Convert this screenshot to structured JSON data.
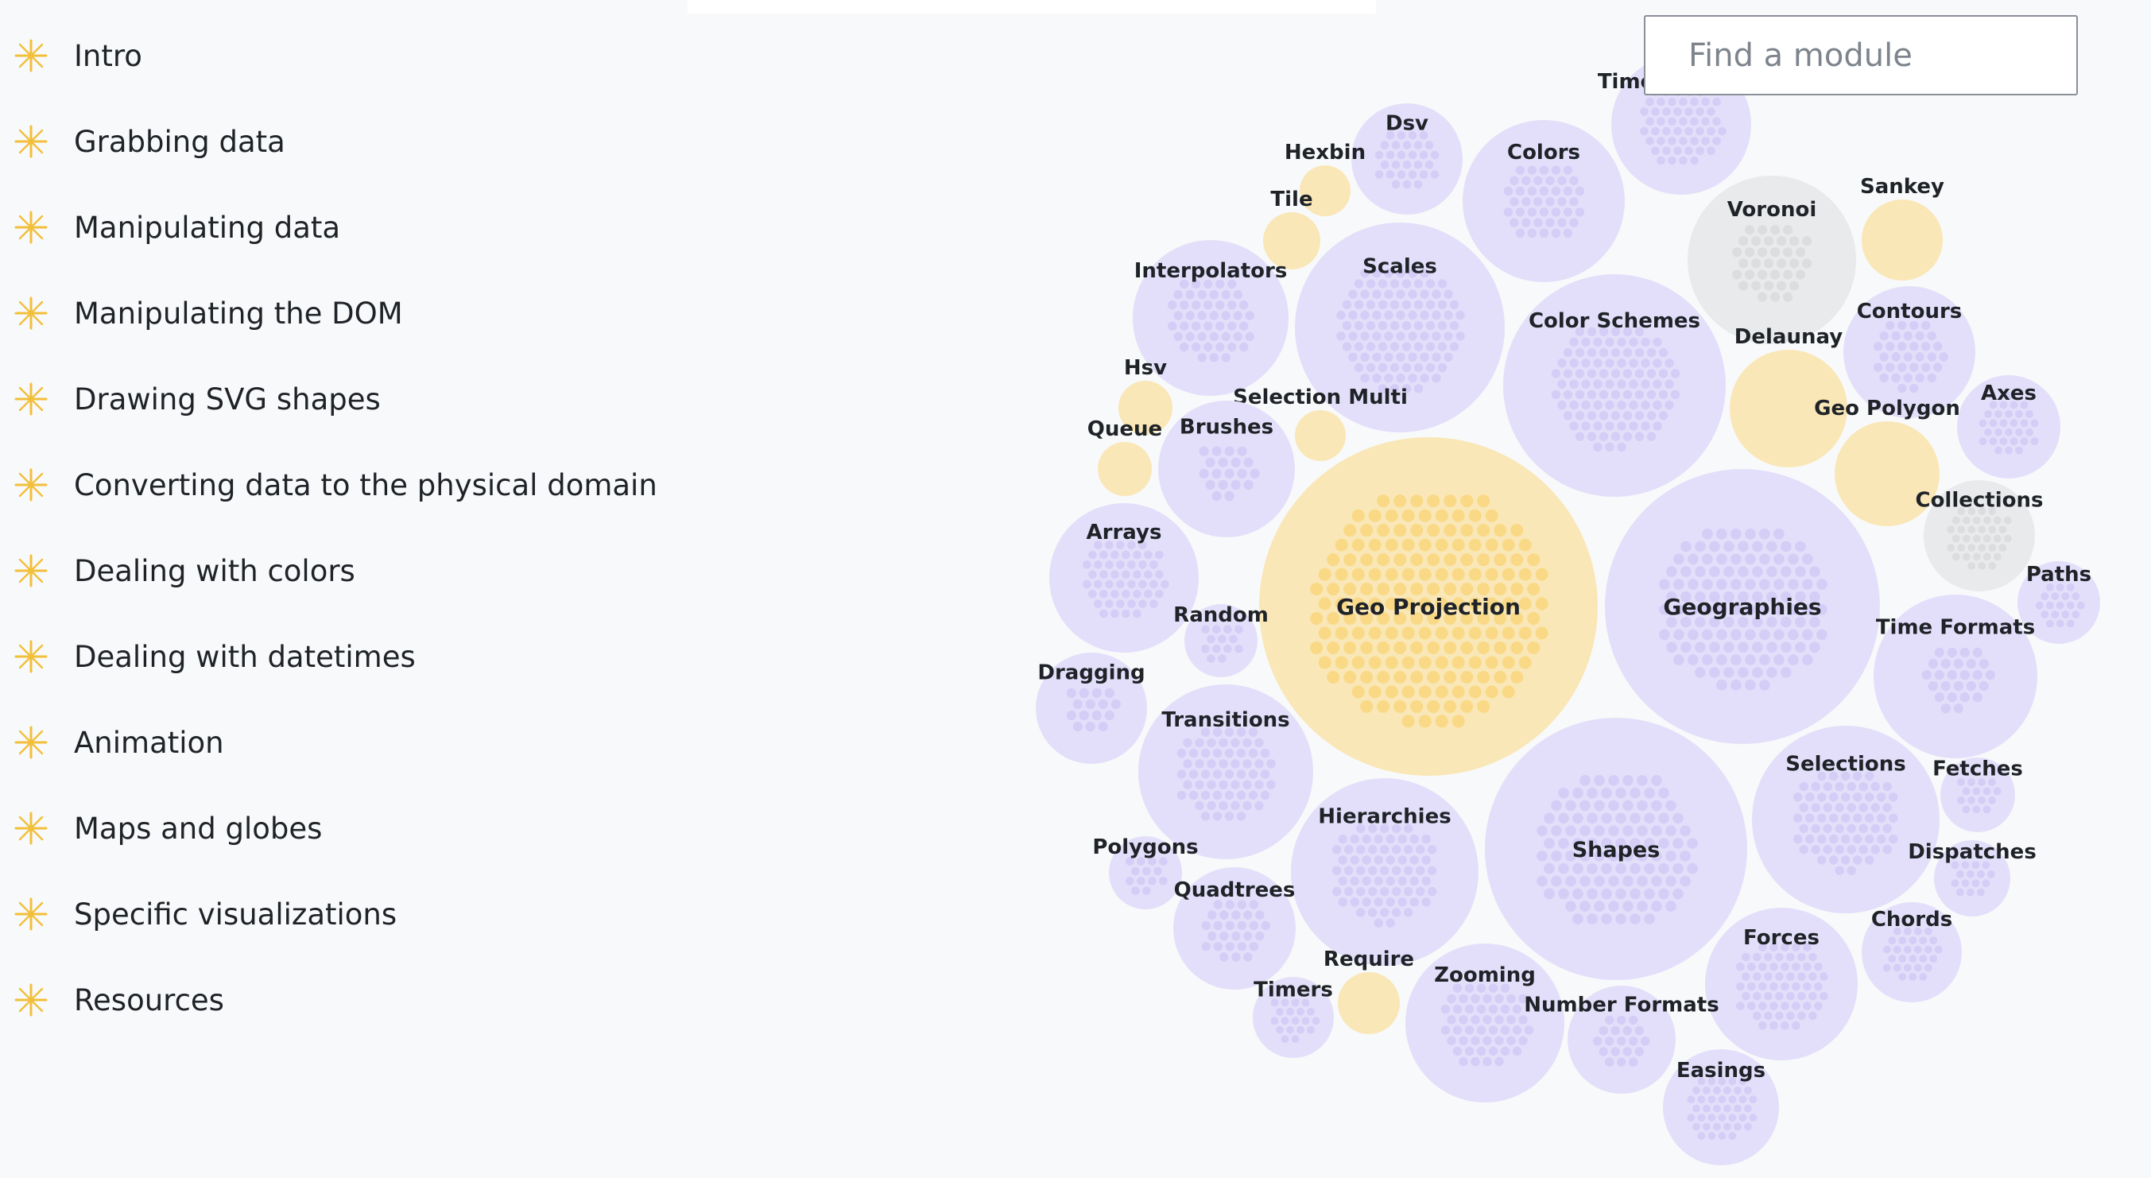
{
  "nav": {
    "items": [
      {
        "label": "Intro"
      },
      {
        "label": "Grabbing data"
      },
      {
        "label": "Manipulating data"
      },
      {
        "label": "Manipulating the DOM"
      },
      {
        "label": "Drawing SVG shapes"
      },
      {
        "label": "Converting data to the physical domain"
      },
      {
        "label": "Dealing with colors"
      },
      {
        "label": "Dealing with datetimes"
      },
      {
        "label": "Animation"
      },
      {
        "label": "Maps and globes"
      },
      {
        "label": "Specific visualizations"
      },
      {
        "label": "Resources"
      }
    ],
    "icon": "sparkle-icon",
    "icon_color": "#f2bf3a"
  },
  "search": {
    "placeholder": "Find a module",
    "value": ""
  },
  "colors": {
    "purple_fill": "#e3dffa",
    "purple_dot": "#d4cdf6",
    "yellow_fill": "#fae7b7",
    "yellow_dot": "#f9d985",
    "gray_fill": "#e9eaeb",
    "gray_dot": "#dcdddf"
  },
  "modules": [
    {
      "name": "Geo Projection",
      "color": "yellow"
    },
    {
      "name": "Geographies",
      "color": "purple"
    },
    {
      "name": "Shapes",
      "color": "purple"
    },
    {
      "name": "Scales",
      "color": "purple"
    },
    {
      "name": "Color Schemes",
      "color": "purple"
    },
    {
      "name": "Voronoi",
      "color": "gray"
    },
    {
      "name": "Colors",
      "color": "purple"
    },
    {
      "name": "Time Intervals",
      "color": "purple"
    },
    {
      "name": "Dsv",
      "color": "purple"
    },
    {
      "name": "Hexbin",
      "color": "yellow"
    },
    {
      "name": "Tile",
      "color": "yellow"
    },
    {
      "name": "Sankey",
      "color": "yellow"
    },
    {
      "name": "Interpolators",
      "color": "purple"
    },
    {
      "name": "Contours",
      "color": "purple"
    },
    {
      "name": "Hsv",
      "color": "yellow"
    },
    {
      "name": "Delaunay",
      "color": "yellow"
    },
    {
      "name": "Axes",
      "color": "purple"
    },
    {
      "name": "Selection Multi",
      "color": "yellow"
    },
    {
      "name": "Queue",
      "color": "yellow"
    },
    {
      "name": "Brushes",
      "color": "purple"
    },
    {
      "name": "Geo Polygon",
      "color": "yellow"
    },
    {
      "name": "Collections",
      "color": "gray"
    },
    {
      "name": "Arrays",
      "color": "purple"
    },
    {
      "name": "Paths",
      "color": "purple"
    },
    {
      "name": "Random",
      "color": "purple"
    },
    {
      "name": "Time Formats",
      "color": "purple"
    },
    {
      "name": "Dragging",
      "color": "purple"
    },
    {
      "name": "Transitions",
      "color": "purple"
    },
    {
      "name": "Fetches",
      "color": "purple"
    },
    {
      "name": "Selections",
      "color": "purple"
    },
    {
      "name": "Dispatches",
      "color": "purple"
    },
    {
      "name": "Polygons",
      "color": "purple"
    },
    {
      "name": "Hierarchies",
      "color": "purple"
    },
    {
      "name": "Quadtrees",
      "color": "purple"
    },
    {
      "name": "Chords",
      "color": "purple"
    },
    {
      "name": "Forces",
      "color": "purple"
    },
    {
      "name": "Require",
      "color": "yellow"
    },
    {
      "name": "Timers",
      "color": "purple"
    },
    {
      "name": "Zooming",
      "color": "purple"
    },
    {
      "name": "Number Formats",
      "color": "purple"
    },
    {
      "name": "Easings",
      "color": "purple"
    }
  ]
}
